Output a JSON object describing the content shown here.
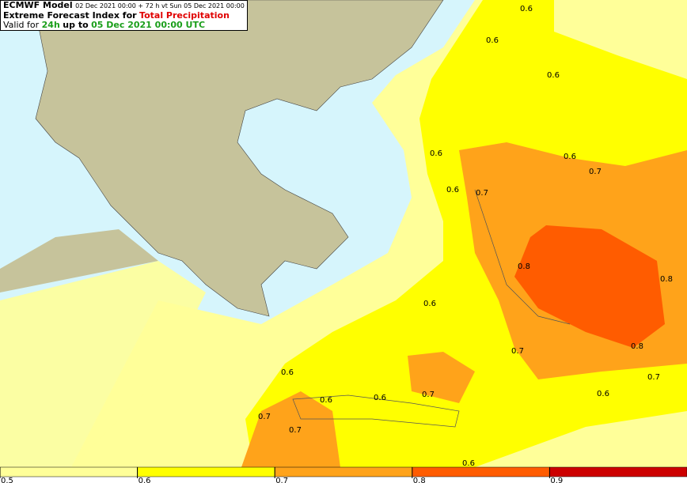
{
  "header": {
    "model": "ECMWF Model",
    "run": "02 Dec 2021 00:00 + 72 h vt Sun 05 Dec 2021 00:00",
    "title": "Extreme Forecast Index for",
    "parameter": "Total Precipitation",
    "valid_prefix": "Valid for",
    "period": "24h",
    "valid_mid": "up to",
    "valid_time": "05 Dec 2021 00:00 UTC"
  },
  "contour_labels": [
    "0.6",
    "0.6",
    "0.6",
    "0.6",
    "0.6",
    "0.7",
    "0.6",
    "0.7",
    "0.8",
    "0.8",
    "0.6",
    "0.7",
    "0.8",
    "0.7",
    "0.6",
    "0.6",
    "0.6",
    "0.7",
    "0.6",
    "0.7",
    "0.7",
    "0.6"
  ],
  "colorbar": {
    "ticks": [
      0.5,
      0.6,
      0.7,
      0.8,
      0.9
    ],
    "colors": [
      "#ffff99",
      "#ffff00",
      "#ffa31a",
      "#ff5c00",
      "#cc0000"
    ]
  }
}
